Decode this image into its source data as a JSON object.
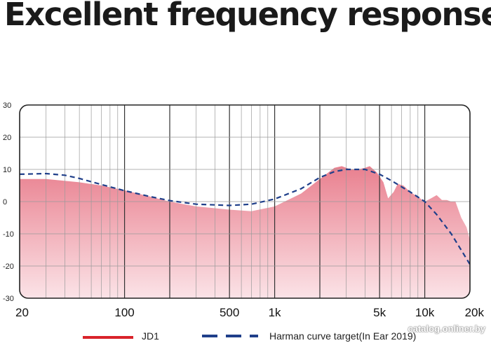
{
  "headline": "Excellent frequency response",
  "watermark": "catalog.onliner.by",
  "colors": {
    "jd1_fill_top": "#e9808f",
    "jd1_fill_bottom": "#fbe3e7",
    "jd1_legend": "#d9232a",
    "harman": "#1f3f8a",
    "grid": "#9a9a9a",
    "grid_major": "#333333"
  },
  "chart_data": {
    "type": "area",
    "x_scale": "log",
    "xlim": [
      20,
      20000
    ],
    "ylim": [
      -30,
      30
    ],
    "grid": true,
    "legend_placement": "bottom",
    "x_ticks": [
      {
        "value": 20,
        "label": "20"
      },
      {
        "value": 100,
        "label": "100"
      },
      {
        "value": 500,
        "label": "500"
      },
      {
        "value": 1000,
        "label": "1k"
      },
      {
        "value": 5000,
        "label": "5k"
      },
      {
        "value": 10000,
        "label": "10k"
      },
      {
        "value": 20000,
        "label": "20k"
      }
    ],
    "y_ticks": [
      {
        "value": 30,
        "label": "30"
      },
      {
        "value": 20,
        "label": "20"
      },
      {
        "value": 10,
        "label": "10"
      },
      {
        "value": 0,
        "label": "0"
      },
      {
        "value": -10,
        "label": "-10"
      },
      {
        "value": -20,
        "label": "-20"
      },
      {
        "value": -30,
        "label": "-30"
      }
    ],
    "series": [
      {
        "name": "JD1",
        "style": "area",
        "x": [
          20,
          30,
          50,
          70,
          100,
          150,
          200,
          300,
          500,
          700,
          1000,
          1500,
          2000,
          2500,
          2800,
          3200,
          3600,
          4000,
          4300,
          4800,
          5300,
          5700,
          6200,
          6600,
          7200,
          8000,
          9000,
          10000,
          11000,
          12000,
          13000,
          14000,
          15000,
          16000,
          17500,
          19000,
          20000
        ],
        "y": [
          7,
          7,
          6,
          5,
          3.5,
          1.5,
          0,
          -1.5,
          -2.5,
          -3,
          -1.5,
          2.5,
          7,
          10.5,
          11,
          10,
          10,
          10.5,
          11,
          9,
          6,
          1,
          3,
          5.5,
          5,
          3,
          1.5,
          0,
          1,
          2,
          0.5,
          0.5,
          0,
          0,
          -5,
          -8,
          -12
        ]
      },
      {
        "name": "Harman curve target(In Ear 2019)",
        "style": "dashed-line",
        "x": [
          20,
          30,
          40,
          50,
          70,
          100,
          150,
          200,
          300,
          500,
          700,
          1000,
          1500,
          2000,
          2500,
          3000,
          4000,
          5000,
          6000,
          7000,
          8000,
          10000,
          12000,
          15000,
          18000,
          20000
        ],
        "y": [
          8.5,
          8.7,
          8.2,
          7.2,
          5.3,
          3.4,
          1.5,
          0.3,
          -0.8,
          -1.2,
          -0.8,
          0.8,
          4,
          7.5,
          9.3,
          10,
          10,
          8.5,
          6.5,
          4.6,
          3,
          0,
          -4,
          -10,
          -16,
          -19.5
        ]
      }
    ]
  }
}
